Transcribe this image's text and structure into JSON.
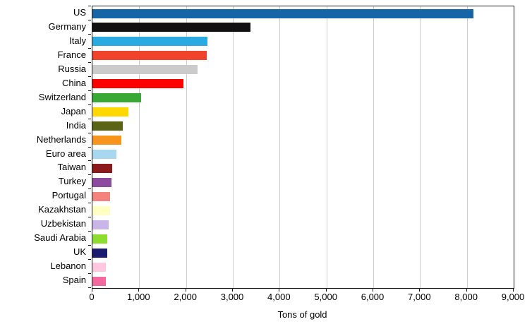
{
  "chart_data": {
    "type": "bar",
    "orientation": "horizontal",
    "title": "",
    "xlabel": "Tons of gold",
    "ylabel": "",
    "xlim": [
      0,
      9000
    ],
    "xticks": [
      0,
      1000,
      2000,
      3000,
      4000,
      5000,
      6000,
      7000,
      8000,
      9000
    ],
    "xtick_labels": [
      "0",
      "1,000",
      "2,000",
      "3,000",
      "4,000",
      "5,000",
      "6,000",
      "7,000",
      "8,000",
      "9,000"
    ],
    "grid": true,
    "legend": "none",
    "categories": [
      "US",
      "Germany",
      "Italy",
      "France",
      "Russia",
      "China",
      "Switzerland",
      "Japan",
      "India",
      "Netherlands",
      "Euro area",
      "Taiwan",
      "Turkey",
      "Portugal",
      "Kazakhstan",
      "Uzbekistan",
      "Saudi Arabia",
      "UK",
      "Lebanon",
      "Spain"
    ],
    "values": [
      8133,
      3370,
      2452,
      2436,
      2250,
      1950,
      1040,
      765,
      640,
      613,
      505,
      424,
      400,
      383,
      375,
      340,
      323,
      310,
      287,
      282
    ],
    "bar_colors": [
      "#1565a7",
      "#111111",
      "#29abe2",
      "#f1432b",
      "#cbcbcb",
      "#fe0000",
      "#39a935",
      "#ffd800",
      "#5b6414",
      "#f7941e",
      "#a8d8f0",
      "#8c1a1a",
      "#8c4b9e",
      "#f4837d",
      "#ffffc4",
      "#c9b5e8",
      "#8ddd2e",
      "#1b1c6e",
      "#ffc8e0",
      "#f2699f"
    ],
    "colors": {
      "grid": "#cfcfcf",
      "axis": "#1a1a1a",
      "background": "#ffffff",
      "text": "#000000"
    }
  }
}
